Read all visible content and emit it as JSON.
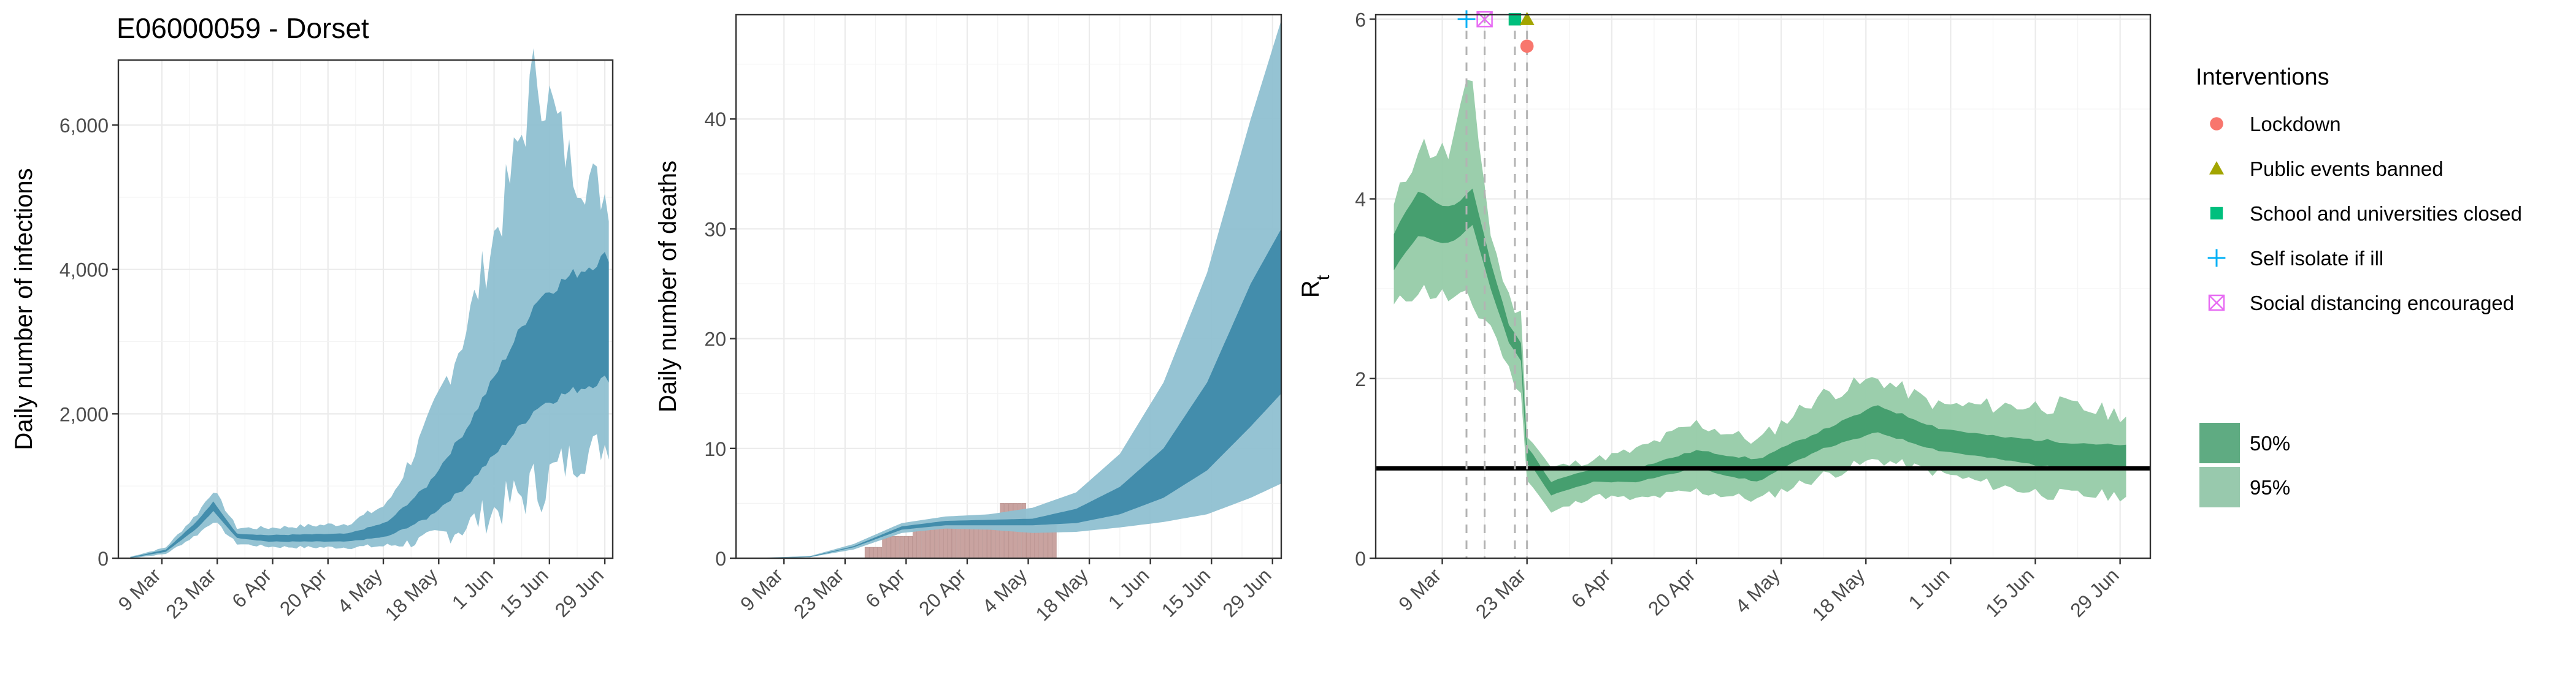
{
  "page_title": "E06000059 - Dorset",
  "colors": {
    "grid": "#ebebeb",
    "infections_inner": "#3a87a7",
    "infections_outer": "#8fc0d1",
    "deaths_bar": "#c9a3a0",
    "rt_inner": "#3d9a68",
    "rt_outer": "#96cba8",
    "lockdown": "#f8766d",
    "public_events": "#a3a500",
    "school": "#00bf7d",
    "self_isolate": "#00b0f6",
    "social_distancing": "#e76bf3"
  },
  "legend": {
    "interventions_title": "Interventions",
    "interventions": [
      {
        "label": "Lockdown",
        "shape": "circle",
        "color": "#f8766d"
      },
      {
        "label": "Public events banned",
        "shape": "triangle",
        "color": "#a3a500"
      },
      {
        "label": "School and universities closed",
        "shape": "square",
        "color": "#00bf7d"
      },
      {
        "label": "Self isolate if ill",
        "shape": "plus",
        "color": "#00b0f6"
      },
      {
        "label": "Social distancing encouraged",
        "shape": "boxed-x",
        "color": "#e76bf3"
      }
    ],
    "bands": [
      {
        "label": "50%",
        "color": "#5fab82"
      },
      {
        "label": "95%",
        "color": "#98c9ad"
      }
    ]
  },
  "chart_data": [
    {
      "type": "area",
      "ylabel": "Daily number of infections",
      "xlabel": "",
      "x_start": "2020-02-27",
      "x_end": "2020-07-01",
      "ylim": [
        0,
        6900
      ],
      "yticks": [
        0,
        2000,
        4000,
        6000
      ],
      "ytick_labels": [
        "0",
        "2,000",
        "4,000",
        "6,000"
      ],
      "xticks": [
        "2020-03-09",
        "2020-03-23",
        "2020-04-06",
        "2020-04-20",
        "2020-05-04",
        "2020-05-18",
        "2020-06-01",
        "2020-06-15",
        "2020-06-29"
      ],
      "xtick_labels": [
        "9 Mar",
        "23 Mar",
        "6 Apr",
        "20 Apr",
        "4 May",
        "18 May",
        "1 Jun",
        "15 Jun",
        "29 Jun"
      ],
      "grid": true,
      "series": [
        {
          "interval": "95%",
          "dates": [
            "2020-03-01",
            "2020-03-10",
            "2020-03-18",
            "2020-03-22",
            "2020-03-28",
            "2020-04-05",
            "2020-04-15",
            "2020-04-25",
            "2020-05-05",
            "2020-05-15",
            "2020-05-25",
            "2020-06-04",
            "2020-06-12",
            "2020-06-20",
            "2020-06-30"
          ],
          "lower": [
            0,
            60,
            330,
            520,
            200,
            160,
            150,
            150,
            170,
            250,
            450,
            750,
            1000,
            1350,
            1600
          ],
          "upper": [
            20,
            150,
            620,
            950,
            420,
            420,
            450,
            480,
            750,
            1800,
            3200,
            5000,
            6800,
            5500,
            5000
          ]
        },
        {
          "interval": "50%",
          "dates": [
            "2020-03-01",
            "2020-03-10",
            "2020-03-18",
            "2020-03-22",
            "2020-03-28",
            "2020-04-05",
            "2020-04-15",
            "2020-04-25",
            "2020-05-05",
            "2020-05-15",
            "2020-05-25",
            "2020-06-04",
            "2020-06-12",
            "2020-06-20",
            "2020-06-30"
          ],
          "lower": [
            5,
            90,
            420,
            650,
            280,
            230,
            230,
            230,
            300,
            550,
            1000,
            1600,
            2100,
            2300,
            2500
          ],
          "upper": [
            12,
            120,
            520,
            780,
            340,
            320,
            330,
            340,
            500,
            1000,
            1800,
            2800,
            3600,
            3900,
            4200
          ]
        }
      ]
    },
    {
      "type": "area",
      "ylabel": "Daily number of deaths",
      "xlabel": "",
      "x_start": "2020-02-27",
      "x_end": "2020-07-01",
      "ylim": [
        0,
        49.5
      ],
      "yticks": [
        0,
        10,
        20,
        30,
        40
      ],
      "ytick_labels": [
        "0",
        "10",
        "20",
        "30",
        "40"
      ],
      "xticks": [
        "2020-03-09",
        "2020-03-23",
        "2020-04-06",
        "2020-04-20",
        "2020-05-04",
        "2020-05-18",
        "2020-06-01",
        "2020-06-15",
        "2020-06-29"
      ],
      "xtick_labels": [
        "9 Mar",
        "23 Mar",
        "6 Apr",
        "20 Apr",
        "4 May",
        "18 May",
        "1 Jun",
        "15 Jun",
        "29 Jun"
      ],
      "grid": true,
      "bars": {
        "dates": [
          "2020-03-28",
          "2020-03-29",
          "2020-03-30",
          "2020-03-31",
          "2020-04-01",
          "2020-04-02",
          "2020-04-03",
          "2020-04-04",
          "2020-04-05",
          "2020-04-06",
          "2020-04-07",
          "2020-04-08",
          "2020-04-09",
          "2020-04-10",
          "2020-04-11",
          "2020-04-12",
          "2020-04-13",
          "2020-04-14",
          "2020-04-15",
          "2020-04-16",
          "2020-04-17",
          "2020-04-18",
          "2020-04-19",
          "2020-04-20",
          "2020-04-21",
          "2020-04-22",
          "2020-04-23",
          "2020-04-24",
          "2020-04-25",
          "2020-04-26",
          "2020-04-27",
          "2020-04-28",
          "2020-04-29",
          "2020-04-30",
          "2020-05-01",
          "2020-05-02",
          "2020-05-03",
          "2020-05-04",
          "2020-05-05",
          "2020-05-06",
          "2020-05-07",
          "2020-05-08",
          "2020-05-09",
          "2020-05-10"
        ],
        "values": [
          1,
          1,
          1,
          1,
          2,
          2,
          2,
          2,
          2,
          2,
          2,
          3,
          3,
          3,
          3,
          3,
          3,
          3,
          3,
          3,
          3,
          3,
          3,
          3,
          3,
          3,
          3,
          3,
          3,
          3,
          3,
          5,
          5,
          5,
          5,
          5,
          5,
          3,
          3,
          3,
          3,
          3,
          3,
          3
        ]
      },
      "series": [
        {
          "interval": "95%",
          "dates": [
            "2020-03-01",
            "2020-03-15",
            "2020-03-25",
            "2020-04-05",
            "2020-04-15",
            "2020-04-25",
            "2020-05-05",
            "2020-05-15",
            "2020-05-25",
            "2020-06-04",
            "2020-06-14",
            "2020-06-24",
            "2020-07-01"
          ],
          "lower": [
            0,
            0.1,
            0.8,
            2.3,
            2.7,
            2.6,
            2.3,
            2.4,
            2.8,
            3.3,
            4.0,
            5.5,
            6.8
          ],
          "upper": [
            0,
            0.2,
            1.3,
            3.2,
            3.8,
            4.0,
            4.6,
            6.0,
            9.5,
            16.0,
            26.0,
            40.0,
            49.0
          ]
        },
        {
          "interval": "50%",
          "dates": [
            "2020-03-01",
            "2020-03-15",
            "2020-03-25",
            "2020-04-05",
            "2020-04-15",
            "2020-04-25",
            "2020-05-05",
            "2020-05-15",
            "2020-05-25",
            "2020-06-04",
            "2020-06-14",
            "2020-06-24",
            "2020-07-01"
          ],
          "lower": [
            0,
            0.1,
            1.0,
            2.6,
            3.0,
            3.0,
            3.0,
            3.2,
            4.0,
            5.5,
            8.0,
            12.0,
            15.0
          ],
          "upper": [
            0,
            0.15,
            1.1,
            2.9,
            3.4,
            3.5,
            3.6,
            4.5,
            6.5,
            10.0,
            16.0,
            25.0,
            30.0
          ]
        }
      ]
    },
    {
      "type": "area",
      "ylabel": "R",
      "ylabel_sub": "t",
      "xlabel": "",
      "x_start": "2020-02-27",
      "x_end": "2020-07-04",
      "ylim": [
        0,
        6.05
      ],
      "yticks": [
        0,
        2,
        4,
        6
      ],
      "ytick_labels": [
        "0",
        "2",
        "4",
        "6"
      ],
      "xticks": [
        "2020-03-09",
        "2020-03-23",
        "2020-04-06",
        "2020-04-20",
        "2020-05-04",
        "2020-05-18",
        "2020-06-01",
        "2020-06-15",
        "2020-06-29"
      ],
      "xtick_labels": [
        "9 Mar",
        "23 Mar",
        "6 Apr",
        "20 Apr",
        "4 May",
        "18 May",
        "1 Jun",
        "15 Jun",
        "29 Jun"
      ],
      "grid": true,
      "reference_line": 1,
      "series": [
        {
          "interval": "95%",
          "dates": [
            "2020-03-01",
            "2020-03-05",
            "2020-03-10",
            "2020-03-14",
            "2020-03-17",
            "2020-03-20",
            "2020-03-22",
            "2020-03-23",
            "2020-03-24",
            "2020-03-27",
            "2020-04-03",
            "2020-04-10",
            "2020-04-20",
            "2020-04-30",
            "2020-05-10",
            "2020-05-20",
            "2020-05-30",
            "2020-06-09",
            "2020-06-19",
            "2020-06-30"
          ],
          "lower": [
            2.8,
            3.0,
            2.9,
            2.8,
            2.6,
            2.1,
            1.8,
            0.9,
            0.8,
            0.5,
            0.7,
            0.65,
            0.75,
            0.65,
            0.9,
            1.1,
            0.95,
            0.8,
            0.7,
            0.7
          ],
          "upper": [
            3.9,
            4.6,
            4.5,
            5.3,
            3.6,
            2.9,
            2.7,
            1.4,
            1.3,
            1.0,
            1.1,
            1.2,
            1.5,
            1.3,
            1.8,
            2.0,
            1.7,
            1.7,
            1.7,
            1.6
          ]
        },
        {
          "interval": "50%",
          "dates": [
            "2020-03-01",
            "2020-03-05",
            "2020-03-10",
            "2020-03-14",
            "2020-03-17",
            "2020-03-20",
            "2020-03-22",
            "2020-03-23",
            "2020-03-24",
            "2020-03-27",
            "2020-04-03",
            "2020-04-10",
            "2020-04-20",
            "2020-04-30",
            "2020-05-10",
            "2020-05-20",
            "2020-05-30",
            "2020-06-09",
            "2020-06-19",
            "2020-06-30"
          ],
          "lower": [
            3.2,
            3.6,
            3.5,
            3.7,
            3.0,
            2.4,
            2.2,
            1.05,
            1.0,
            0.7,
            0.85,
            0.85,
            1.0,
            0.85,
            1.2,
            1.4,
            1.2,
            1.1,
            1.0,
            1.0
          ],
          "upper": [
            3.6,
            4.1,
            3.9,
            4.1,
            3.3,
            2.6,
            2.4,
            1.25,
            1.15,
            0.85,
            1.0,
            1.0,
            1.2,
            1.1,
            1.4,
            1.7,
            1.45,
            1.35,
            1.3,
            1.25
          ]
        }
      ],
      "interventions": [
        {
          "name": "Self isolate if ill",
          "date": "2020-03-13",
          "shape": "plus",
          "y": 6.0
        },
        {
          "name": "Social distancing encouraged",
          "date": "2020-03-16",
          "shape": "boxed-x",
          "y": 6.0
        },
        {
          "name": "School and universities closed",
          "date": "2020-03-21",
          "shape": "square",
          "y": 6.0
        },
        {
          "name": "Public events banned",
          "date": "2020-03-23",
          "shape": "triangle",
          "y": 6.0
        },
        {
          "name": "Lockdown",
          "date": "2020-03-23",
          "shape": "circle",
          "y": 5.7
        }
      ]
    }
  ]
}
